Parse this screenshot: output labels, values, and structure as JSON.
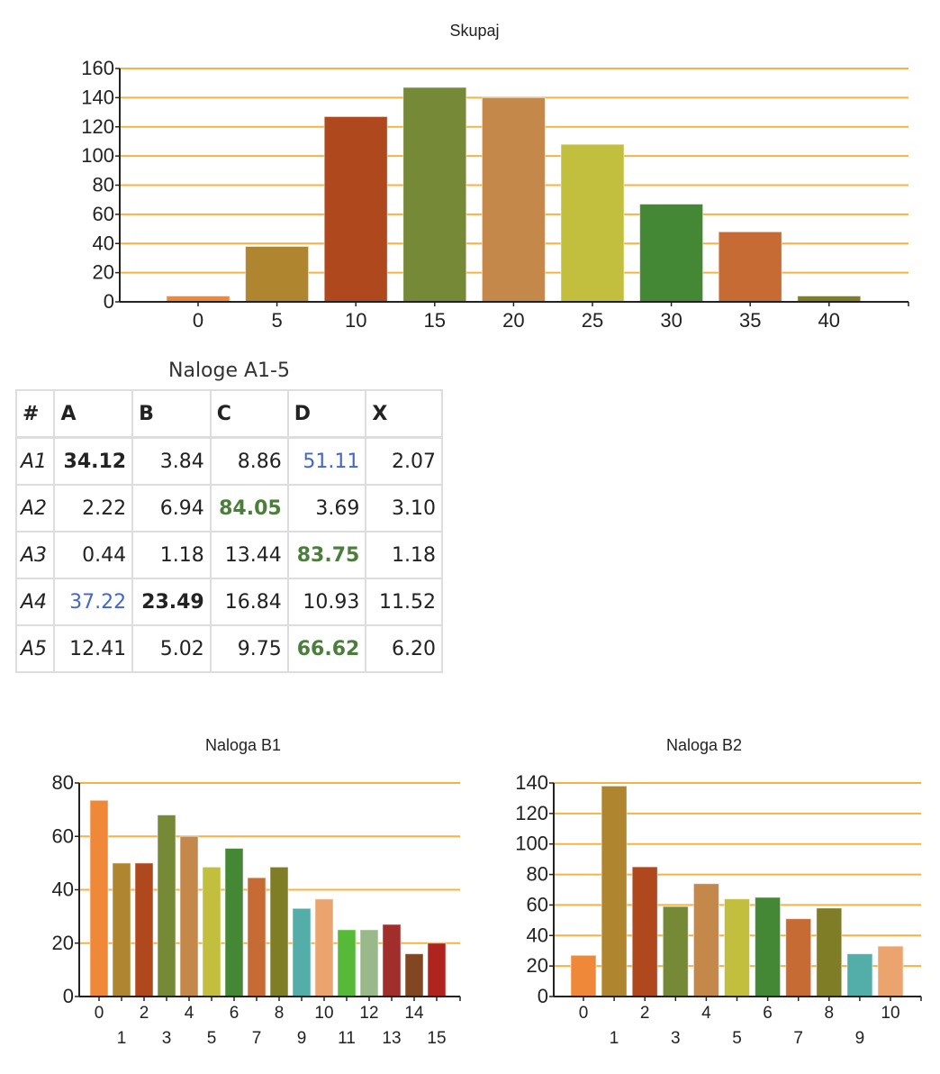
{
  "colors": [
    "#F0883A",
    "#B08530",
    "#B0481E",
    "#768936",
    "#C4884B",
    "#C2BE3E",
    "#448734",
    "#C66B34",
    "#7F7E27",
    "#53AEAA",
    "#EBA46D",
    "#56B937",
    "#9AB98A",
    "#A12E2B",
    "#824720",
    "#B02420"
  ],
  "grid_color": "#F5B345",
  "chart_data": [
    {
      "type": "bar",
      "title": "Skupaj",
      "categories": [
        "0",
        "5",
        "10",
        "15",
        "20",
        "25",
        "30",
        "35",
        "40"
      ],
      "values": [
        4,
        38,
        127,
        147,
        140,
        108,
        67,
        48,
        4
      ],
      "ylim": [
        0,
        160
      ],
      "yticks": [
        "0",
        "20",
        "40",
        "60",
        "80",
        "100",
        "120",
        "140",
        "160"
      ],
      "grid": true
    },
    {
      "type": "bar",
      "title": "Naloga B1",
      "categories": [
        "0",
        "1",
        "2",
        "3",
        "4",
        "5",
        "6",
        "7",
        "8",
        "9",
        "10",
        "11",
        "12",
        "13",
        "14",
        "15"
      ],
      "values": [
        73.5,
        50,
        50,
        68,
        60,
        48.5,
        55.5,
        44.5,
        48.5,
        33,
        36.5,
        25,
        25,
        27,
        16,
        20
      ],
      "ylim": [
        0,
        80
      ],
      "yticks": [
        "0",
        "20",
        "40",
        "60",
        "80"
      ],
      "grid": true
    },
    {
      "type": "bar",
      "title": "Naloga B2",
      "categories": [
        "0",
        "1",
        "2",
        "3",
        "4",
        "5",
        "6",
        "7",
        "8",
        "9",
        "10"
      ],
      "values": [
        27,
        138,
        85,
        59,
        74,
        64,
        65,
        51,
        58,
        28,
        33
      ],
      "ylim": [
        0,
        140
      ],
      "yticks": [
        "0",
        "20",
        "40",
        "60",
        "80",
        "100",
        "120",
        "140"
      ],
      "grid": true
    }
  ],
  "table": {
    "title": "Naloge A1-5",
    "headers": [
      "#",
      "A",
      "B",
      "C",
      "D",
      "X"
    ],
    "rows": [
      {
        "label": "A1",
        "cells": [
          {
            "v": "34.12",
            "s": "bold"
          },
          {
            "v": "3.84",
            "s": ""
          },
          {
            "v": "8.86",
            "s": ""
          },
          {
            "v": "51.11",
            "s": "blue"
          },
          {
            "v": "2.07",
            "s": ""
          }
        ]
      },
      {
        "label": "A2",
        "cells": [
          {
            "v": "2.22",
            "s": ""
          },
          {
            "v": "6.94",
            "s": ""
          },
          {
            "v": "84.05",
            "s": "green"
          },
          {
            "v": "3.69",
            "s": ""
          },
          {
            "v": "3.10",
            "s": ""
          }
        ]
      },
      {
        "label": "A3",
        "cells": [
          {
            "v": "0.44",
            "s": ""
          },
          {
            "v": "1.18",
            "s": ""
          },
          {
            "v": "13.44",
            "s": ""
          },
          {
            "v": "83.75",
            "s": "green"
          },
          {
            "v": "1.18",
            "s": ""
          }
        ]
      },
      {
        "label": "A4",
        "cells": [
          {
            "v": "37.22",
            "s": "blue"
          },
          {
            "v": "23.49",
            "s": "bold"
          },
          {
            "v": "16.84",
            "s": ""
          },
          {
            "v": "10.93",
            "s": ""
          },
          {
            "v": "11.52",
            "s": ""
          }
        ]
      },
      {
        "label": "A5",
        "cells": [
          {
            "v": "12.41",
            "s": ""
          },
          {
            "v": "5.02",
            "s": ""
          },
          {
            "v": "9.75",
            "s": ""
          },
          {
            "v": "66.62",
            "s": "green"
          },
          {
            "v": "6.20",
            "s": ""
          }
        ]
      }
    ]
  }
}
